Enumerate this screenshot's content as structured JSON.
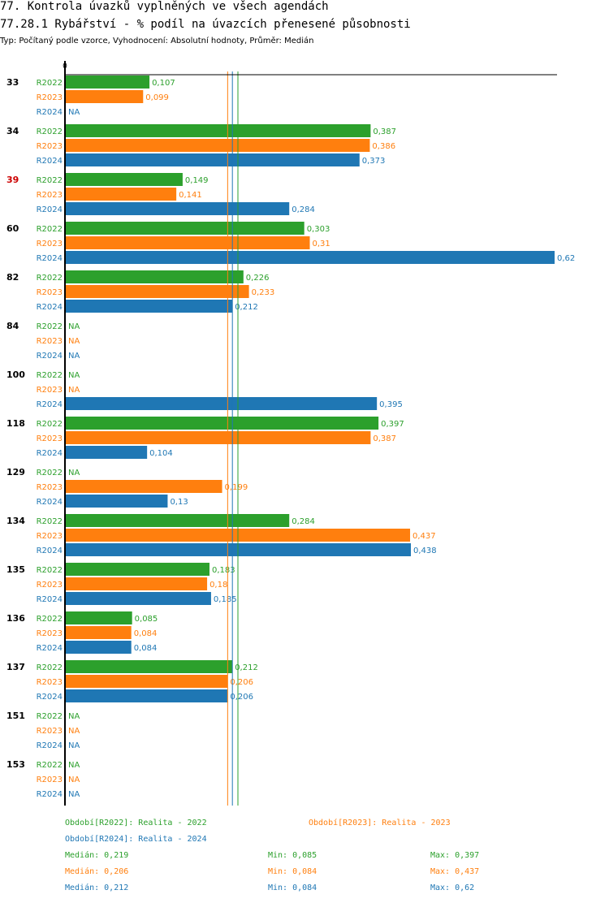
{
  "header": {
    "title": "77. Kontrola úvazků vyplněných ve všech agendách",
    "subtitle": "77.28.1 Rybářství - % podíl na úvazcích přenesené působnosti",
    "type_line": "Typ: Počítaný podle vzorce, Vyhodnocení: Absolutní hodnoty, Průměr: Medián"
  },
  "colors": {
    "R2022": "#2ca02c",
    "R2023": "#ff7f0e",
    "R2024": "#1f77b4",
    "highlight": "#cc0000",
    "axis": "#000000"
  },
  "chart_data": {
    "type": "bar",
    "orientation": "horizontal",
    "title": "77.28.1 Rybářství - % podíl na úvazcích přenesené působnosti",
    "xlabel": "",
    "ylabel": "",
    "x_axis_tick": "0",
    "xlim": [
      0,
      0.63
    ],
    "categories": [
      "33",
      "34",
      "39",
      "60",
      "82",
      "84",
      "100",
      "118",
      "129",
      "134",
      "135",
      "136",
      "137",
      "151",
      "153"
    ],
    "highlighted_category": "39",
    "series": [
      {
        "name": "R2022",
        "values": [
          0.107,
          0.387,
          0.149,
          0.303,
          0.226,
          null,
          null,
          0.397,
          null,
          0.284,
          0.183,
          0.085,
          0.212,
          null,
          null
        ],
        "labels": [
          "0,107",
          "0,387",
          "0,149",
          "0,303",
          "0,226",
          "NA",
          "NA",
          "0,397",
          "NA",
          "0,284",
          "0,183",
          "0,085",
          "0,212",
          "NA",
          "NA"
        ]
      },
      {
        "name": "R2023",
        "values": [
          0.099,
          0.386,
          0.141,
          0.31,
          0.233,
          null,
          null,
          0.387,
          0.199,
          0.437,
          0.18,
          0.084,
          0.206,
          null,
          null
        ],
        "labels": [
          "0,099",
          "0,386",
          "0,141",
          "0,31",
          "0,233",
          "NA",
          "NA",
          "0,387",
          "0,199",
          "0,437",
          "0,18",
          "0,084",
          "0,206",
          "NA",
          "NA"
        ]
      },
      {
        "name": "R2024",
        "values": [
          null,
          0.373,
          0.284,
          0.62,
          0.212,
          null,
          0.395,
          0.104,
          0.13,
          0.438,
          0.185,
          0.084,
          0.206,
          null,
          null
        ],
        "labels": [
          "NA",
          "0,373",
          "0,284",
          "0,62",
          "0,212",
          "NA",
          "0,395",
          "0,104",
          "0,13",
          "0,438",
          "0,185",
          "0,084",
          "0,206",
          "NA",
          "NA"
        ]
      }
    ],
    "reference_lines": [
      {
        "series": "R2022",
        "stat": "median",
        "value": 0.219
      },
      {
        "series": "R2023",
        "stat": "median",
        "value": 0.206
      },
      {
        "series": "R2024",
        "stat": "median",
        "value": 0.212
      }
    ]
  },
  "legend": {
    "periods": [
      {
        "series": "R2022",
        "text": "Období[R2022]: Realita - 2022"
      },
      {
        "series": "R2023",
        "text": "Období[R2023]: Realita - 2023"
      },
      {
        "series": "R2024",
        "text": "Období[R2024]: Realita - 2024"
      }
    ],
    "stats": [
      {
        "series": "R2022",
        "median": "Medián: 0,219",
        "min": "Min: 0,085",
        "max": "Max: 0,397"
      },
      {
        "series": "R2023",
        "median": "Medián: 0,206",
        "min": "Min: 0,084",
        "max": "Max: 0,437"
      },
      {
        "series": "R2024",
        "median": "Medián: 0,212",
        "min": "Min: 0,084",
        "max": "Max: 0,62"
      }
    ]
  }
}
